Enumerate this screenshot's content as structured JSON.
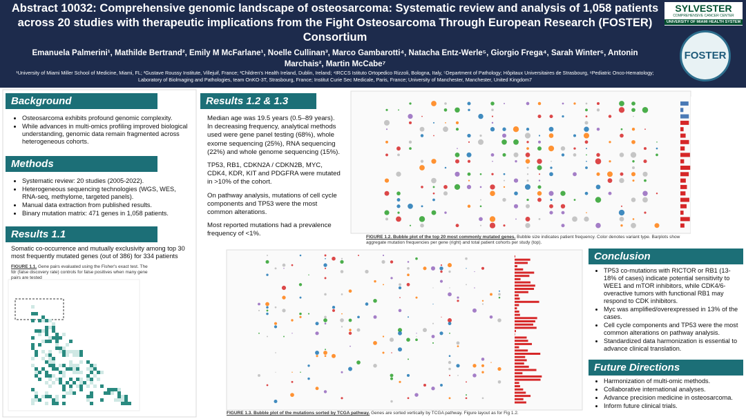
{
  "header": {
    "title": "Abstract 10032: Comprehensive genomic landscape of osteosarcoma: Systematic review and analysis of 1,058 patients across 20 studies with therapeutic implications from the Fight Osteosarcoma Through European Research (FOSTER) Consortium",
    "authors": "Emanuela Palmerini¹, Mathilde Bertrand², Emily M McFarlane¹, Noelle Cullinan³, Marco Gambarotti⁴, Natacha Entz-Werle⁵, Giorgio Frega⁴, Sarah Winter⁶, Antonin Marchais², Martin McCabe⁷",
    "affiliations": "¹University of Miami Miller School of Medicine, Miami, FL; ²Gustave Roussy Institute, Villejuif, France; ³Children's Health Ireland, Dublin, Ireland; ⁴IRCCS Istituto Ortopedico Rizzoli, Bologna, Italy, ⁵Department of Pathology; Hôpitaux Universitaires de Strasbourg, ⁶Pediatric Onco-Hematology; Laboratory of Biolmaging and Pathologies, team OnKO-3T, Strasbourg, France; Institut Curie Sec Medicale, Paris, France; University of Manchester, Manchester, United Kingdom7",
    "logo_name": "SYLVESTER",
    "logo_sub": "COMPREHENSIVE CANCER CENTER",
    "logo_univ": "UNIVERSITY OF MIAMI HEALTH SYSTEM",
    "foster": "FOSTER"
  },
  "background": {
    "heading": "Background",
    "bullets": [
      "Osteosarcoma exhibits profound genomic complexity.",
      "While advances in multi-omics profiling improved biological understanding, genomic data remain fragmented across heterogeneous cohorts."
    ]
  },
  "methods": {
    "heading": "Methods",
    "bullets": [
      "Systematic review: 20 studies (2005-2022).",
      "Heterogeneous sequencing technologies (WGS, WES, RNA-seq, methylome, targeted panels).",
      "Manual data extraction from published results.",
      "Binary mutation matrix: 471 genes in 1,058 patients."
    ]
  },
  "results_1_1": {
    "heading": "Results 1.1",
    "text": "Somatic co-occurrence and mutually exclusivity among top 30 most frequently mutated genes (out of 386) for 334 patients",
    "caption_label": "FIGURE 1.1.",
    "caption": "Gene pairs evaluated using the Fisher's exact test. The fdr (false discovery rate) controls for false positives when many gene pairs are tested"
  },
  "results_1_2": {
    "heading": "Results 1.2 & 1.3",
    "paragraphs": [
      "Median age was 19.5 years (0.5–89 years). In decreasing frequency, analytical methods used were gene panel testing (68%), whole exome sequencing (25%), RNA sequencing (22%) and whole genome sequencing (15%).",
      "TP53, RB1, CDKN2A / CDKN2B, MYC, CDK4, KDR, KIT and PDGFRA were mutated in >10% of the cohort.",
      "On pathway analysis, mutations of cell cycle components and TP53 were the most common alterations.",
      "Most reported mutations had a prevalence frequency of <1%."
    ]
  },
  "figure_1_2": {
    "label": "FIGURE 1.2. Bubble plot of the top 20 most commonly mutated genes.",
    "caption": "Bubble size indicates patient frequency. Color denotes variant type. Barplots show aggregate mutation frequencies per gene (right) and total patient cohorts per study (top)."
  },
  "figure_1_3": {
    "label": "FIGURE 1.3. Bubble plot of the mutations sorted by TCGA pathway.",
    "caption": "Genes are sorted vertically by TCGA pathway. Figure layout as for Fig 1.2."
  },
  "conclusion": {
    "heading": "Conclusion",
    "bullets": [
      "TP53 co-mutations with RICTOR or RB1 (13-18% of cases) indicate potential sensitivity to WEE1 and mTOR inhibitors, while CDK4/6-overactive tumors with functional RB1 may respond to CDK inhibitors.",
      "Myc was amplified/overexpressed in 13% of the cases.",
      "Cell cycle components and TP53 were the most common alterations on pathway analysis.",
      "Standardized data harmonization is essential to advance clinical translation."
    ]
  },
  "future": {
    "heading": "Future Directions",
    "bullets": [
      "Harmonization of multi-omic methods.",
      "Collaborative international analyses.",
      "Advance precision medicine in osteosarcoma.",
      "Inform future clinical trials."
    ]
  }
}
